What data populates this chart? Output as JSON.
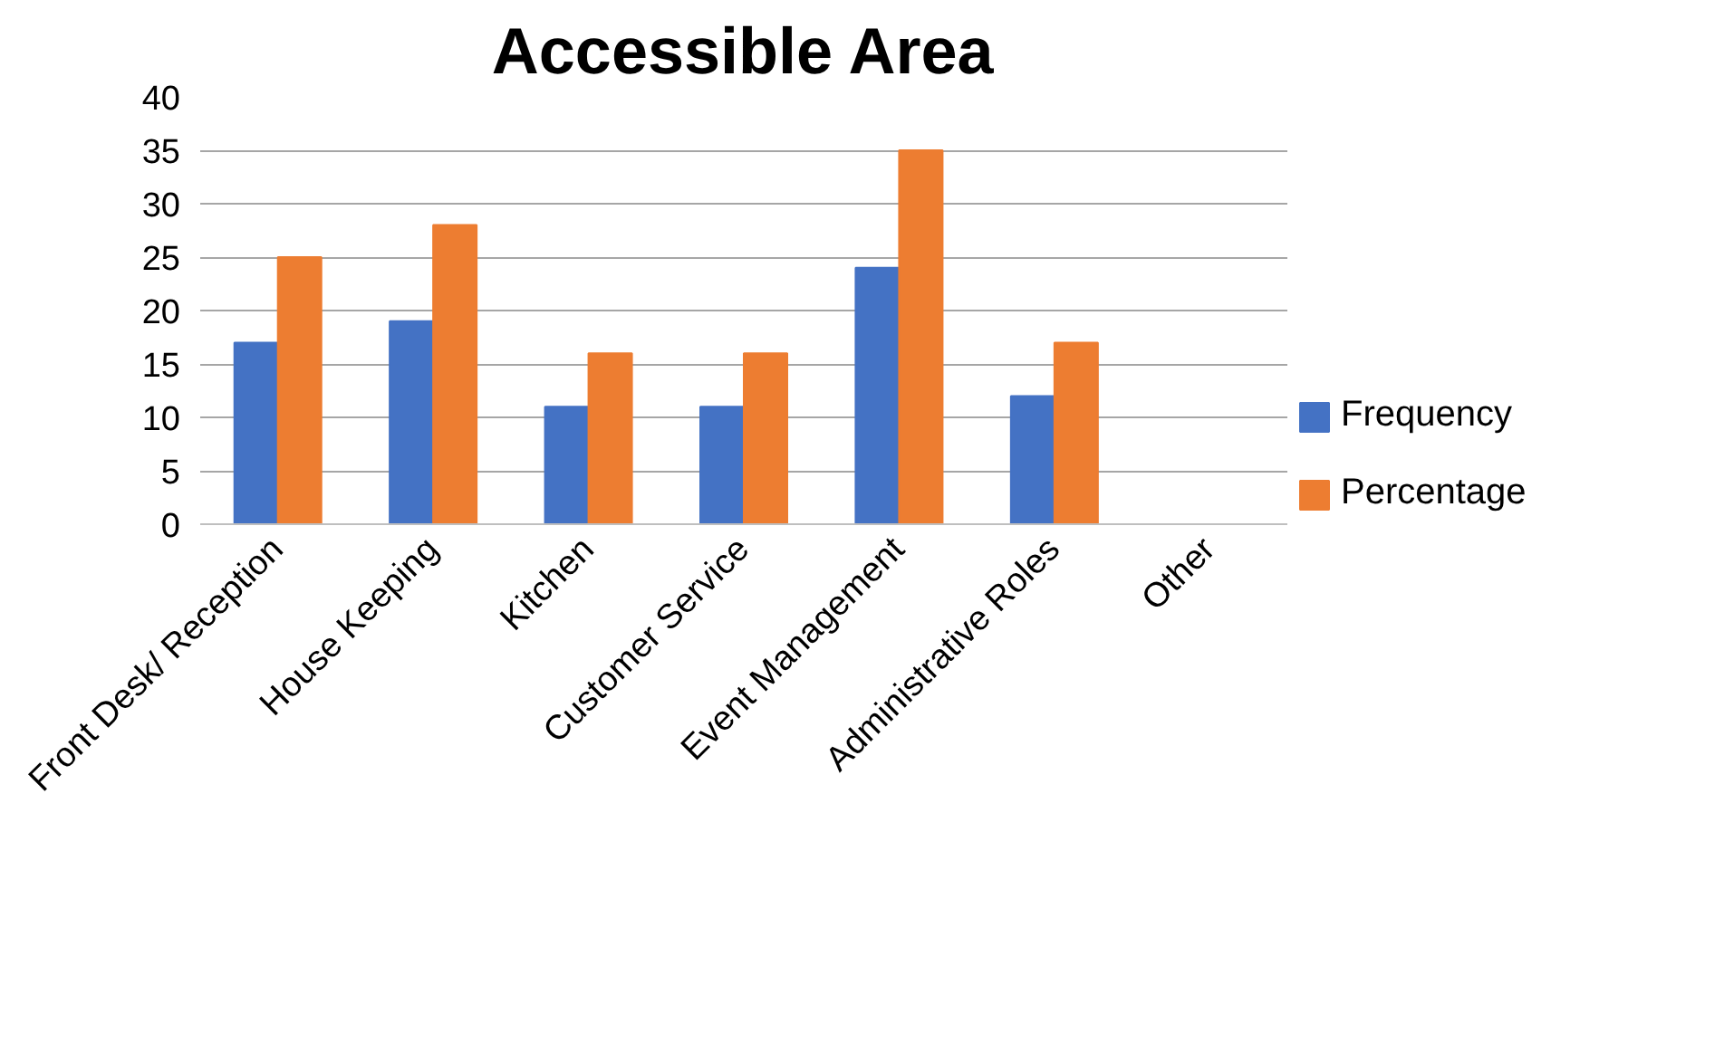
{
  "chart_data": {
    "type": "bar",
    "title": "Accessible Area",
    "categories": [
      "Front Desk/ Reception",
      "House Keeping",
      "Kitchen",
      "Customer Service",
      "Event Management",
      "Administrative Roles",
      "Other"
    ],
    "series": [
      {
        "name": "Frequency",
        "color": "#4472c4",
        "values": [
          17,
          19,
          11,
          11,
          24,
          12,
          0
        ]
      },
      {
        "name": "Percentage",
        "color": "#ed7d31",
        "values": [
          25,
          28,
          16,
          16,
          35,
          17,
          0
        ]
      }
    ],
    "ylim": [
      0,
      40
    ],
    "yticks": [
      0,
      5,
      10,
      15,
      20,
      25,
      30,
      35,
      40
    ],
    "grid": "y",
    "legend": "right"
  }
}
